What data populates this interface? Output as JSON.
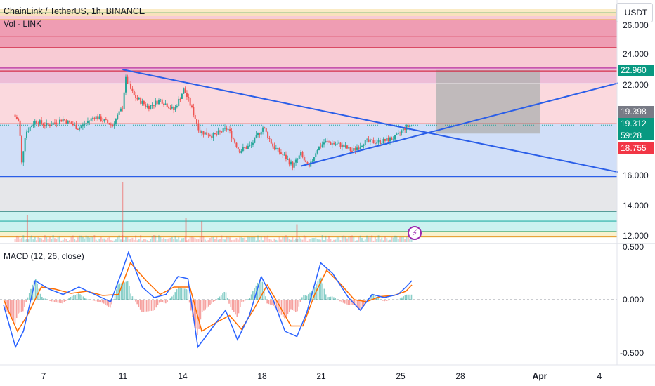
{
  "header": {
    "title": "ChainLink / TetherUS, 1h, BINANCE",
    "volume_label": "Vol · LINK",
    "macd_label": "MACD (12, 26, close)",
    "currency": "USDT"
  },
  "price_axis": {
    "ticks": [
      "26.000",
      "24.000",
      "22.000",
      "16.000",
      "14.000",
      "12.000"
    ],
    "tick_values": [
      26,
      24,
      22,
      16,
      14,
      12
    ]
  },
  "macd_axis": {
    "ticks": [
      "0.500",
      "0.000",
      "-0.500"
    ],
    "tick_values": [
      0.5,
      0,
      -0.5
    ]
  },
  "time_axis": {
    "ticks": [
      "7",
      "11",
      "14",
      "18",
      "21",
      "25",
      "28",
      "Apr",
      "4"
    ]
  },
  "badges": {
    "tp": {
      "label": "22.960",
      "value": 22.96,
      "color": "#089981"
    },
    "prev": {
      "label": "19.398",
      "value": 19.398,
      "color": "#787b86"
    },
    "last": {
      "label": "19.312",
      "value": 19.312,
      "color": "#089981"
    },
    "countdown": "59:28",
    "sl": {
      "label": "18.755",
      "value": 18.755,
      "color": "#f23645"
    }
  },
  "colors": {
    "up": "#26a69a",
    "down": "#ef5350",
    "trendline": "#2a5ee8",
    "macd_line": "#2962ff",
    "signal_line": "#ff6d00",
    "red_zone": "#f7c5cf",
    "blue_zone": "#c9d9f7",
    "gray_box": "#b2b2b2"
  },
  "chart_data": {
    "type": "candlestick",
    "title": "ChainLink / TetherUS, 1h, BINANCE",
    "timeframe": "1h",
    "date_ticks": [
      "7",
      "11",
      "14",
      "18",
      "21",
      "25",
      "28",
      "Apr",
      "4"
    ],
    "price_range": [
      11.8,
      27.0
    ],
    "last_price": 19.312,
    "key_levels": [
      26.75,
      26.3,
      25.2,
      24.45,
      23.1,
      22.9,
      22.06,
      19.4,
      15.9,
      13.6,
      12.95,
      12.25,
      11.95
    ],
    "trendlines": [
      {
        "name": "descending",
        "from": {
          "x": "Mar 11",
          "y": 23.0
        },
        "to": {
          "x": "Apr 5",
          "y": 16.2
        }
      },
      {
        "name": "ascending",
        "from": {
          "x": "Mar 20",
          "y": 16.6
        },
        "to": {
          "x": "Apr 5",
          "y": 22.1
        }
      }
    ],
    "projection_box": {
      "from_x": "Mar 27",
      "to_x": "Mar 31",
      "top": 22.96,
      "bottom": 18.755
    },
    "price_path": [
      {
        "day": 5.5,
        "price": 20.0
      },
      {
        "day": 5.8,
        "price": 19.5
      },
      {
        "day": 5.9,
        "price": 16.6
      },
      {
        "day": 6.1,
        "price": 18.8
      },
      {
        "day": 6.6,
        "price": 19.6
      },
      {
        "day": 7.2,
        "price": 19.3
      },
      {
        "day": 8.0,
        "price": 19.7
      },
      {
        "day": 8.8,
        "price": 19.1
      },
      {
        "day": 9.6,
        "price": 19.9
      },
      {
        "day": 10.5,
        "price": 19.3
      },
      {
        "day": 11.0,
        "price": 20.5
      },
      {
        "day": 11.15,
        "price": 22.4
      },
      {
        "day": 11.6,
        "price": 21.2
      },
      {
        "day": 12.3,
        "price": 20.5
      },
      {
        "day": 12.9,
        "price": 21.0
      },
      {
        "day": 13.6,
        "price": 20.3
      },
      {
        "day": 14.1,
        "price": 21.7
      },
      {
        "day": 14.5,
        "price": 20.4
      },
      {
        "day": 14.9,
        "price": 18.9
      },
      {
        "day": 15.6,
        "price": 18.6
      },
      {
        "day": 16.3,
        "price": 19.1
      },
      {
        "day": 16.9,
        "price": 17.6
      },
      {
        "day": 17.5,
        "price": 18.0
      },
      {
        "day": 18.1,
        "price": 19.2
      },
      {
        "day": 18.6,
        "price": 17.9
      },
      {
        "day": 19.2,
        "price": 17.2
      },
      {
        "day": 19.6,
        "price": 16.6
      },
      {
        "day": 20.0,
        "price": 17.4
      },
      {
        "day": 20.4,
        "price": 16.4
      },
      {
        "day": 20.8,
        "price": 17.7
      },
      {
        "day": 21.2,
        "price": 18.2
      },
      {
        "day": 22.0,
        "price": 18.0
      },
      {
        "day": 22.6,
        "price": 17.6
      },
      {
        "day": 23.2,
        "price": 18.2
      },
      {
        "day": 24.0,
        "price": 18.2
      },
      {
        "day": 24.8,
        "price": 18.5
      },
      {
        "day": 25.2,
        "price": 19.1
      },
      {
        "day": 25.6,
        "price": 19.31
      }
    ],
    "volume_spikes": [
      {
        "day": 11.0,
        "relative": 1.0
      },
      {
        "day": 6.2,
        "relative": 0.45
      },
      {
        "day": 14.2,
        "relative": 0.4
      },
      {
        "day": 15.0,
        "relative": 0.35
      },
      {
        "day": 19.8,
        "relative": 0.3
      }
    ],
    "macd": {
      "range": [
        -0.55,
        0.55
      ],
      "series": [
        {
          "name": "MACD",
          "points": [
            {
              "day": 5.0,
              "value": -0.05
            },
            {
              "day": 5.6,
              "value": -0.45
            },
            {
              "day": 6.0,
              "value": -0.3
            },
            {
              "day": 6.6,
              "value": 0.18
            },
            {
              "day": 7.3,
              "value": 0.1
            },
            {
              "day": 8.0,
              "value": 0.05
            },
            {
              "day": 8.8,
              "value": 0.12
            },
            {
              "day": 9.6,
              "value": 0.05
            },
            {
              "day": 10.4,
              "value": -0.02
            },
            {
              "day": 11.0,
              "value": 0.28
            },
            {
              "day": 11.3,
              "value": 0.45
            },
            {
              "day": 12.0,
              "value": 0.12
            },
            {
              "day": 12.6,
              "value": 0.02
            },
            {
              "day": 13.2,
              "value": 0.05
            },
            {
              "day": 13.8,
              "value": 0.22
            },
            {
              "day": 14.3,
              "value": 0.2
            },
            {
              "day": 14.8,
              "value": -0.45
            },
            {
              "day": 15.4,
              "value": -0.3
            },
            {
              "day": 16.2,
              "value": -0.1
            },
            {
              "day": 16.8,
              "value": -0.38
            },
            {
              "day": 17.4,
              "value": -0.15
            },
            {
              "day": 18.0,
              "value": 0.22
            },
            {
              "day": 18.6,
              "value": 0.0
            },
            {
              "day": 19.2,
              "value": -0.3
            },
            {
              "day": 19.8,
              "value": -0.35
            },
            {
              "day": 20.3,
              "value": -0.12
            },
            {
              "day": 21.0,
              "value": 0.35
            },
            {
              "day": 21.6,
              "value": 0.25
            },
            {
              "day": 22.4,
              "value": 0.02
            },
            {
              "day": 23.0,
              "value": -0.1
            },
            {
              "day": 23.6,
              "value": 0.05
            },
            {
              "day": 24.2,
              "value": 0.02
            },
            {
              "day": 24.9,
              "value": 0.05
            },
            {
              "day": 25.3,
              "value": 0.12
            },
            {
              "day": 25.6,
              "value": 0.18
            }
          ]
        },
        {
          "name": "Signal",
          "points": [
            {
              "day": 5.0,
              "value": 0.0
            },
            {
              "day": 5.7,
              "value": -0.3
            },
            {
              "day": 6.2,
              "value": -0.15
            },
            {
              "day": 6.9,
              "value": 0.12
            },
            {
              "day": 7.6,
              "value": 0.1
            },
            {
              "day": 8.4,
              "value": 0.06
            },
            {
              "day": 9.2,
              "value": 0.08
            },
            {
              "day": 10.0,
              "value": 0.04
            },
            {
              "day": 10.8,
              "value": 0.05
            },
            {
              "day": 11.4,
              "value": 0.35
            },
            {
              "day": 12.2,
              "value": 0.18
            },
            {
              "day": 12.9,
              "value": 0.05
            },
            {
              "day": 13.6,
              "value": 0.12
            },
            {
              "day": 14.4,
              "value": 0.12
            },
            {
              "day": 15.0,
              "value": -0.3
            },
            {
              "day": 15.7,
              "value": -0.22
            },
            {
              "day": 16.4,
              "value": -0.15
            },
            {
              "day": 17.0,
              "value": -0.28
            },
            {
              "day": 17.6,
              "value": -0.1
            },
            {
              "day": 18.3,
              "value": 0.14
            },
            {
              "day": 18.9,
              "value": -0.05
            },
            {
              "day": 19.5,
              "value": -0.25
            },
            {
              "day": 20.1,
              "value": -0.25
            },
            {
              "day": 20.7,
              "value": 0.05
            },
            {
              "day": 21.3,
              "value": 0.28
            },
            {
              "day": 22.0,
              "value": 0.15
            },
            {
              "day": 22.7,
              "value": 0.0
            },
            {
              "day": 23.3,
              "value": -0.02
            },
            {
              "day": 24.0,
              "value": 0.03
            },
            {
              "day": 24.7,
              "value": 0.04
            },
            {
              "day": 25.3,
              "value": 0.08
            },
            {
              "day": 25.6,
              "value": 0.14
            }
          ]
        }
      ]
    }
  }
}
